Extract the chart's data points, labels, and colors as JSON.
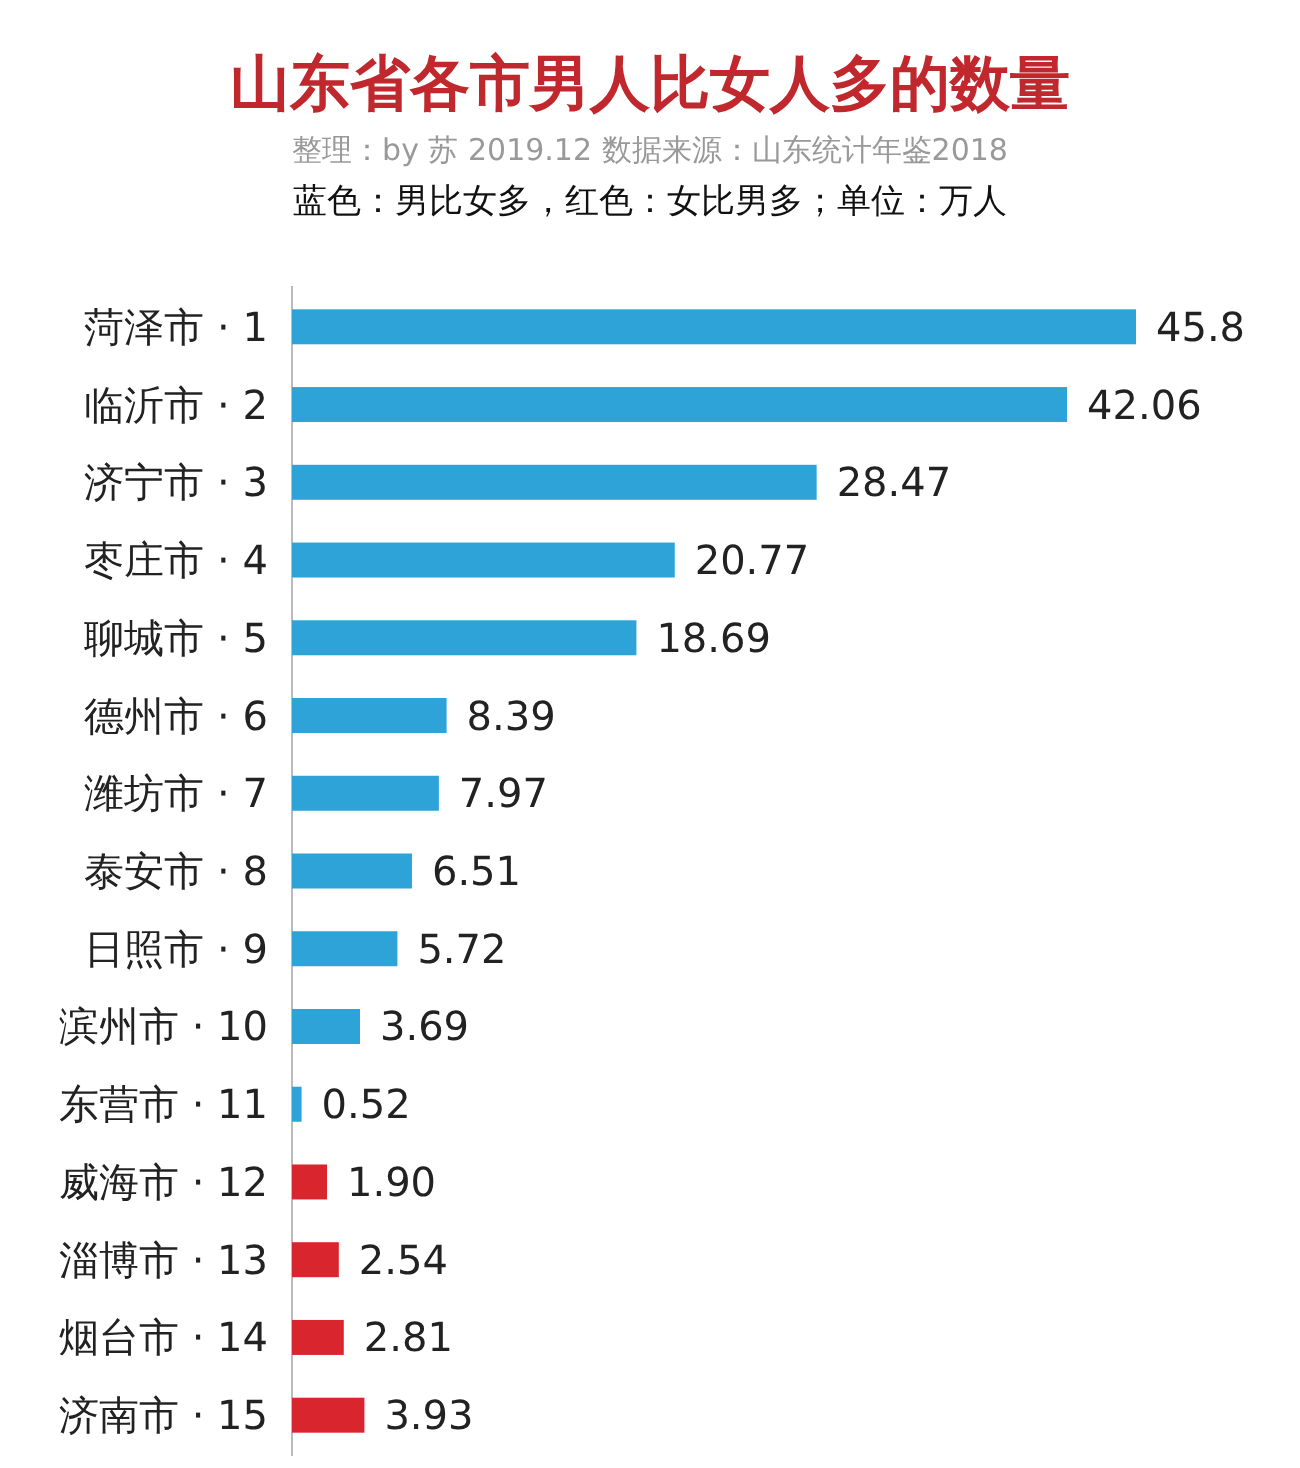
{
  "chart_data": {
    "type": "bar",
    "orientation": "horizontal",
    "title": "山东省各市男人比女人多的数量",
    "subtitle": "整理：by 苏 2019.12 数据来源：山东统计年鉴2018",
    "annotations": [
      "蓝色：男比女多，红色：女比男多；单位：万人"
    ],
    "categories": [
      "菏泽市 · 1",
      "临沂市 · 2",
      "济宁市 · 3",
      "枣庄市 · 4",
      "聊城市 · 5",
      "德州市 · 6",
      "潍坊市 · 7",
      "泰安市 · 8",
      "日照市 · 9",
      "滨州市 · 10",
      "东营市 · 11",
      "威海市 · 12",
      "淄博市 · 13",
      "烟台市 · 14",
      "济南市 · 15"
    ],
    "values": [
      45.8,
      42.06,
      28.47,
      20.77,
      18.69,
      8.39,
      7.97,
      6.51,
      5.72,
      3.69,
      0.52,
      1.9,
      2.54,
      2.81,
      3.93
    ],
    "value_labels": [
      "45.8",
      "42.06",
      "28.47",
      "20.77",
      "18.69",
      "8.39",
      "7.97",
      "6.51",
      "5.72",
      "3.69",
      "0.52",
      "1.90",
      "2.54",
      "2.81",
      "3.93"
    ],
    "colors": [
      "#2ea3d8",
      "#2ea3d8",
      "#2ea3d8",
      "#2ea3d8",
      "#2ea3d8",
      "#2ea3d8",
      "#2ea3d8",
      "#2ea3d8",
      "#2ea3d8",
      "#2ea3d8",
      "#2ea3d8",
      "#d9262e",
      "#d9262e",
      "#d9262e",
      "#d9262e"
    ]
  }
}
